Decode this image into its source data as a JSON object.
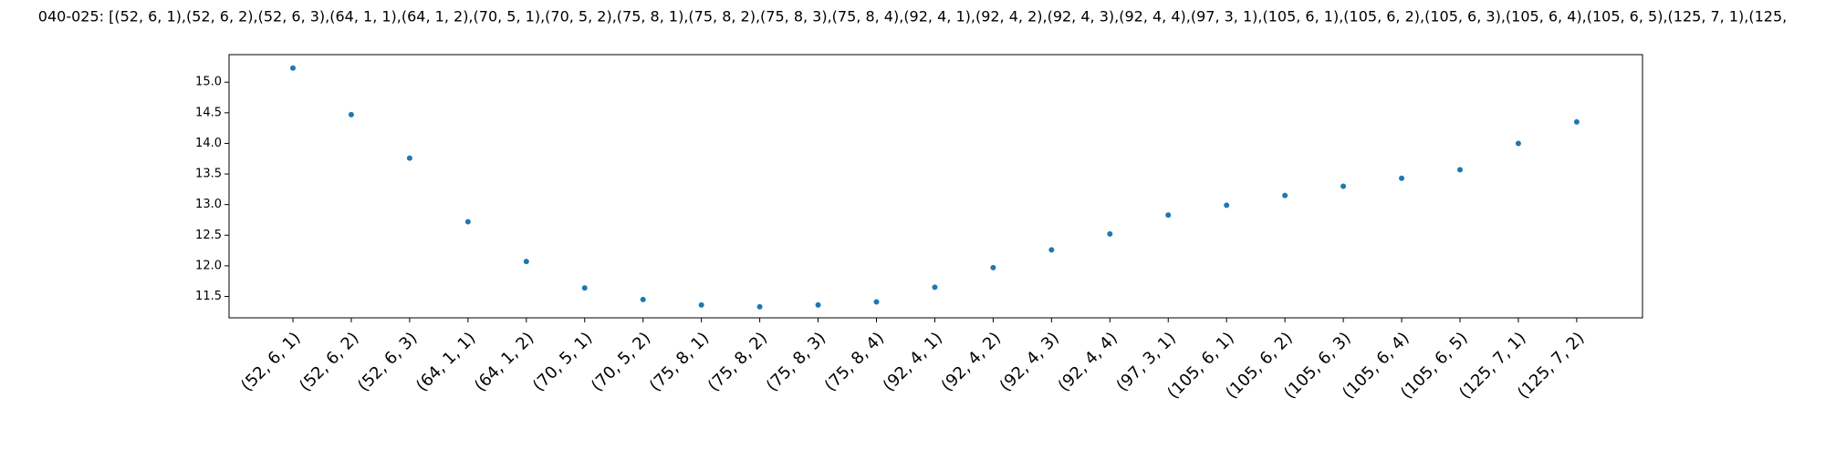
{
  "chart_data": {
    "type": "scatter",
    "title": "040-025: [(52, 6, 1),(52, 6, 2),(52, 6, 3),(64, 1, 1),(64, 1, 2),(70, 5, 1),(70, 5, 2),(75, 8, 1),(75, 8, 2),(75, 8, 3),(75, 8, 4),(92, 4, 1),(92, 4, 2),(92, 4, 3),(92, 4, 4),(97, 3, 1),(105, 6, 1),(105, 6, 2),(105, 6, 3),(105, 6, 4),(105, 6, 5),(125, 7, 1),(125,",
    "xlabel": "",
    "ylabel": "",
    "categories": [
      "(52, 6, 1)",
      "(52, 6, 2)",
      "(52, 6, 3)",
      "(64, 1, 1)",
      "(64, 1, 2)",
      "(70, 5, 1)",
      "(70, 5, 2)",
      "(75, 8, 1)",
      "(75, 8, 2)",
      "(75, 8, 3)",
      "(75, 8, 4)",
      "(92, 4, 1)",
      "(92, 4, 2)",
      "(92, 4, 3)",
      "(92, 4, 4)",
      "(97, 3, 1)",
      "(105, 6, 1)",
      "(105, 6, 2)",
      "(105, 6, 3)",
      "(105, 6, 4)",
      "(105, 6, 5)",
      "(125, 7, 1)",
      "(125, 7, 2)"
    ],
    "values": [
      15.23,
      14.47,
      13.76,
      12.72,
      12.07,
      11.64,
      11.45,
      11.36,
      11.33,
      11.36,
      11.41,
      11.65,
      11.97,
      12.26,
      12.52,
      12.83,
      12.99,
      13.15,
      13.3,
      13.43,
      13.57,
      14.0,
      14.35
    ],
    "ylim": [
      11.15,
      15.45
    ],
    "yticks": [
      11.5,
      12.0,
      12.5,
      13.0,
      13.5,
      14.0,
      14.5,
      15.0
    ],
    "ytick_labels": [
      "11.5",
      "12.0",
      "12.5",
      "13.0",
      "13.5",
      "14.0",
      "14.5",
      "15.0"
    ],
    "grid": false,
    "legend": "none",
    "colors": {
      "marker": "#1f77b4",
      "axes": "#000000",
      "background": "#ffffff"
    }
  }
}
